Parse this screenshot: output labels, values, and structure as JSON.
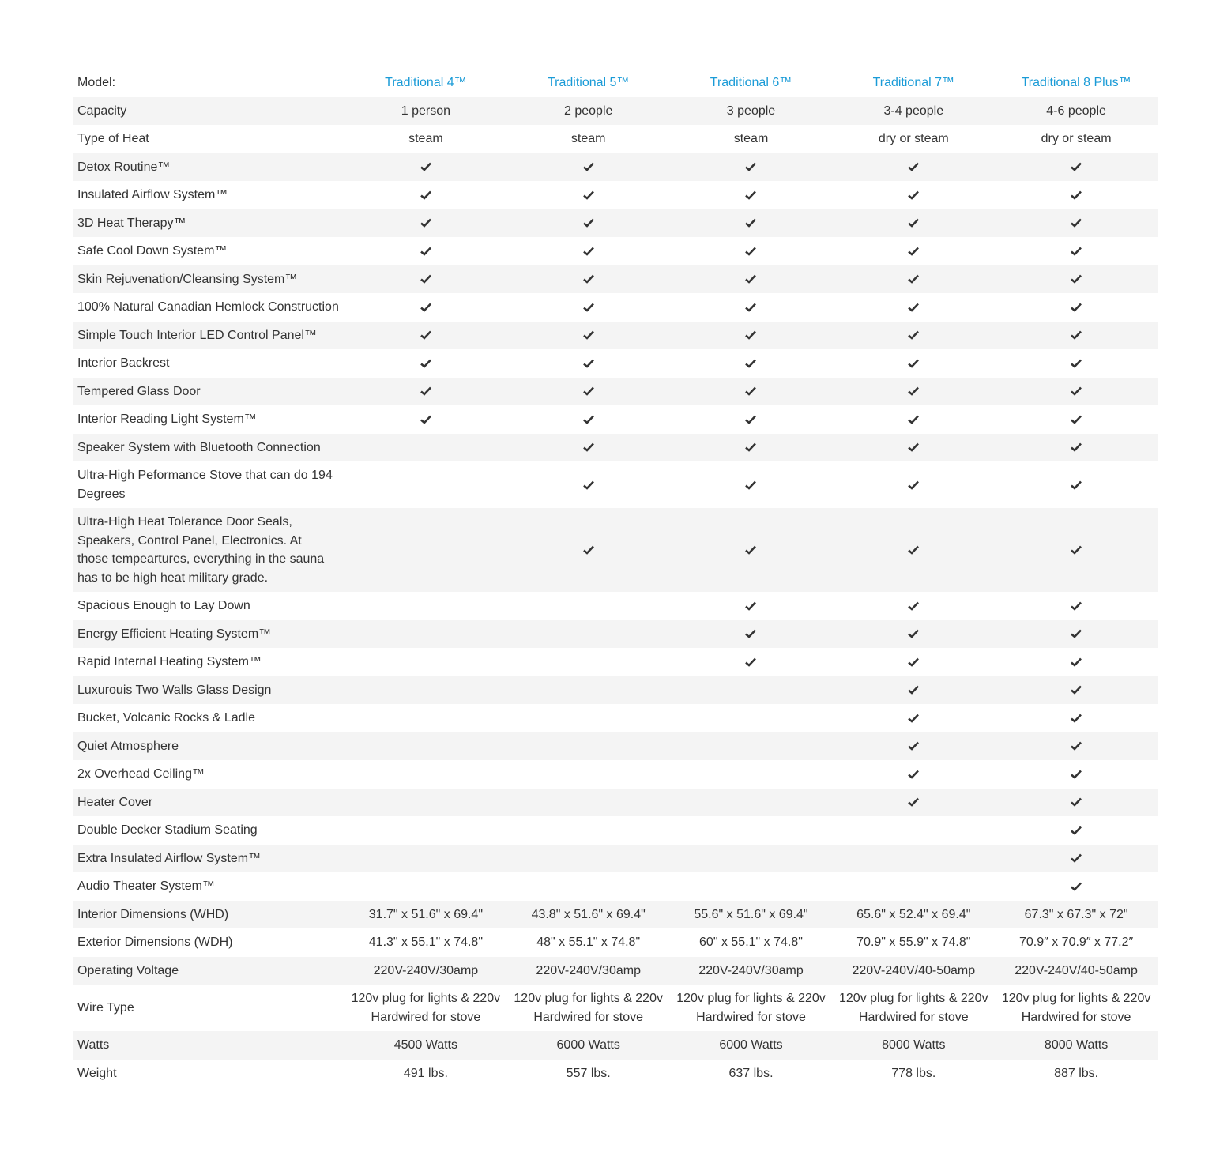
{
  "header": {
    "label": "Model:",
    "models": [
      "Traditional 4™",
      "Traditional 5™",
      "Traditional 6™",
      "Traditional 7™",
      "Traditional 8 Plus™"
    ]
  },
  "rows": [
    {
      "label": "Capacity",
      "cells": [
        "1 person",
        "2 people",
        "3 people",
        "3-4 people",
        "4-6 people"
      ]
    },
    {
      "label": "Type of Heat",
      "cells": [
        "steam",
        "steam",
        "steam",
        "dry or steam",
        "dry or steam"
      ]
    },
    {
      "label": "Detox Routine™",
      "cells": [
        true,
        true,
        true,
        true,
        true
      ]
    },
    {
      "label": "Insulated Airflow System™",
      "cells": [
        true,
        true,
        true,
        true,
        true
      ]
    },
    {
      "label": "3D Heat Therapy™",
      "cells": [
        true,
        true,
        true,
        true,
        true
      ]
    },
    {
      "label": "Safe Cool Down System™",
      "cells": [
        true,
        true,
        true,
        true,
        true
      ]
    },
    {
      "label": "Skin Rejuvenation/Cleansing System™",
      "cells": [
        true,
        true,
        true,
        true,
        true
      ]
    },
    {
      "label": "100% Natural Canadian Hemlock Construction",
      "cells": [
        true,
        true,
        true,
        true,
        true
      ]
    },
    {
      "label": "Simple Touch Interior LED Control Panel™",
      "cells": [
        true,
        true,
        true,
        true,
        true
      ]
    },
    {
      "label": "Interior Backrest",
      "cells": [
        true,
        true,
        true,
        true,
        true
      ]
    },
    {
      "label": "Tempered Glass Door",
      "cells": [
        true,
        true,
        true,
        true,
        true
      ]
    },
    {
      "label": "Interior Reading Light System™",
      "cells": [
        true,
        true,
        true,
        true,
        true
      ]
    },
    {
      "label": "Speaker System with Bluetooth Connection",
      "cells": [
        false,
        true,
        true,
        true,
        true
      ]
    },
    {
      "label": "Ultra-High Peformance Stove that can do 194 Degrees",
      "cells": [
        false,
        true,
        true,
        true,
        true
      ]
    },
    {
      "label": "Ultra-High Heat Tolerance Door Seals, Speakers, Control Panel, Electronics. At those tempeartures, everything in the sauna has to be high heat military grade.",
      "cells": [
        false,
        true,
        true,
        true,
        true
      ]
    },
    {
      "label": "Spacious Enough to Lay Down",
      "cells": [
        false,
        false,
        true,
        true,
        true
      ]
    },
    {
      "label": "Energy Efficient Heating System™",
      "cells": [
        false,
        false,
        true,
        true,
        true
      ]
    },
    {
      "label": "Rapid Internal Heating System™",
      "cells": [
        false,
        false,
        true,
        true,
        true
      ]
    },
    {
      "label": "Luxurouis Two Walls Glass Design",
      "cells": [
        false,
        false,
        false,
        true,
        true
      ]
    },
    {
      "label": "Bucket, Volcanic Rocks & Ladle",
      "cells": [
        false,
        false,
        false,
        true,
        true
      ]
    },
    {
      "label": "Quiet Atmosphere",
      "cells": [
        false,
        false,
        false,
        true,
        true
      ]
    },
    {
      "label": "2x Overhead Ceiling™",
      "cells": [
        false,
        false,
        false,
        true,
        true
      ]
    },
    {
      "label": "Heater Cover",
      "cells": [
        false,
        false,
        false,
        true,
        true
      ]
    },
    {
      "label": "Double Decker Stadium Seating",
      "cells": [
        false,
        false,
        false,
        false,
        true
      ]
    },
    {
      "label": "Extra Insulated Airflow System™",
      "cells": [
        false,
        false,
        false,
        false,
        true
      ]
    },
    {
      "label": "Audio Theater System™",
      "cells": [
        false,
        false,
        false,
        false,
        true
      ]
    },
    {
      "label": "Interior Dimensions (WHD)",
      "cells": [
        "31.7\" x 51.6\" x 69.4\"",
        "43.8\" x 51.6\" x 69.4\"",
        "55.6\" x 51.6\" x 69.4\"",
        "65.6\" x 52.4\" x 69.4\"",
        "67.3\" x 67.3\" x 72\""
      ]
    },
    {
      "label": "Exterior Dimensions (WDH)",
      "cells": [
        "41.3\" x 55.1\" x 74.8\"",
        "48\" x 55.1\" x 74.8\"",
        "60\" x 55.1\" x 74.8\"",
        "70.9\" x 55.9\" x 74.8\"",
        "70.9″ x 70.9″ x 77.2″"
      ]
    },
    {
      "label": "Operating Voltage",
      "cells": [
        "220V-240V/30amp",
        "220V-240V/30amp",
        "220V-240V/30amp",
        "220V-240V/40-50amp",
        "220V-240V/40-50amp"
      ]
    },
    {
      "label": "Wire Type",
      "cells": [
        "120v plug for lights & 220v Hardwired for stove",
        "120v plug for lights & 220v Hardwired for stove",
        "120v plug for lights & 220v Hardwired for stove",
        "120v plug for lights & 220v Hardwired for stove",
        "120v plug for lights & 220v Hardwired for stove"
      ]
    },
    {
      "label": "Watts",
      "cells": [
        "4500 Watts",
        "6000 Watts",
        "6000 Watts",
        "8000 Watts",
        "8000 Watts"
      ]
    },
    {
      "label": "Weight",
      "cells": [
        "491 lbs.",
        "557 lbs.",
        "637 lbs.",
        "778 lbs.",
        "887 lbs."
      ]
    }
  ],
  "colors": {
    "model_link": "#1a9bd7",
    "row_shade": "#f4f4f4",
    "text": "#333333"
  },
  "icons": {
    "check": "checkmark-icon"
  }
}
